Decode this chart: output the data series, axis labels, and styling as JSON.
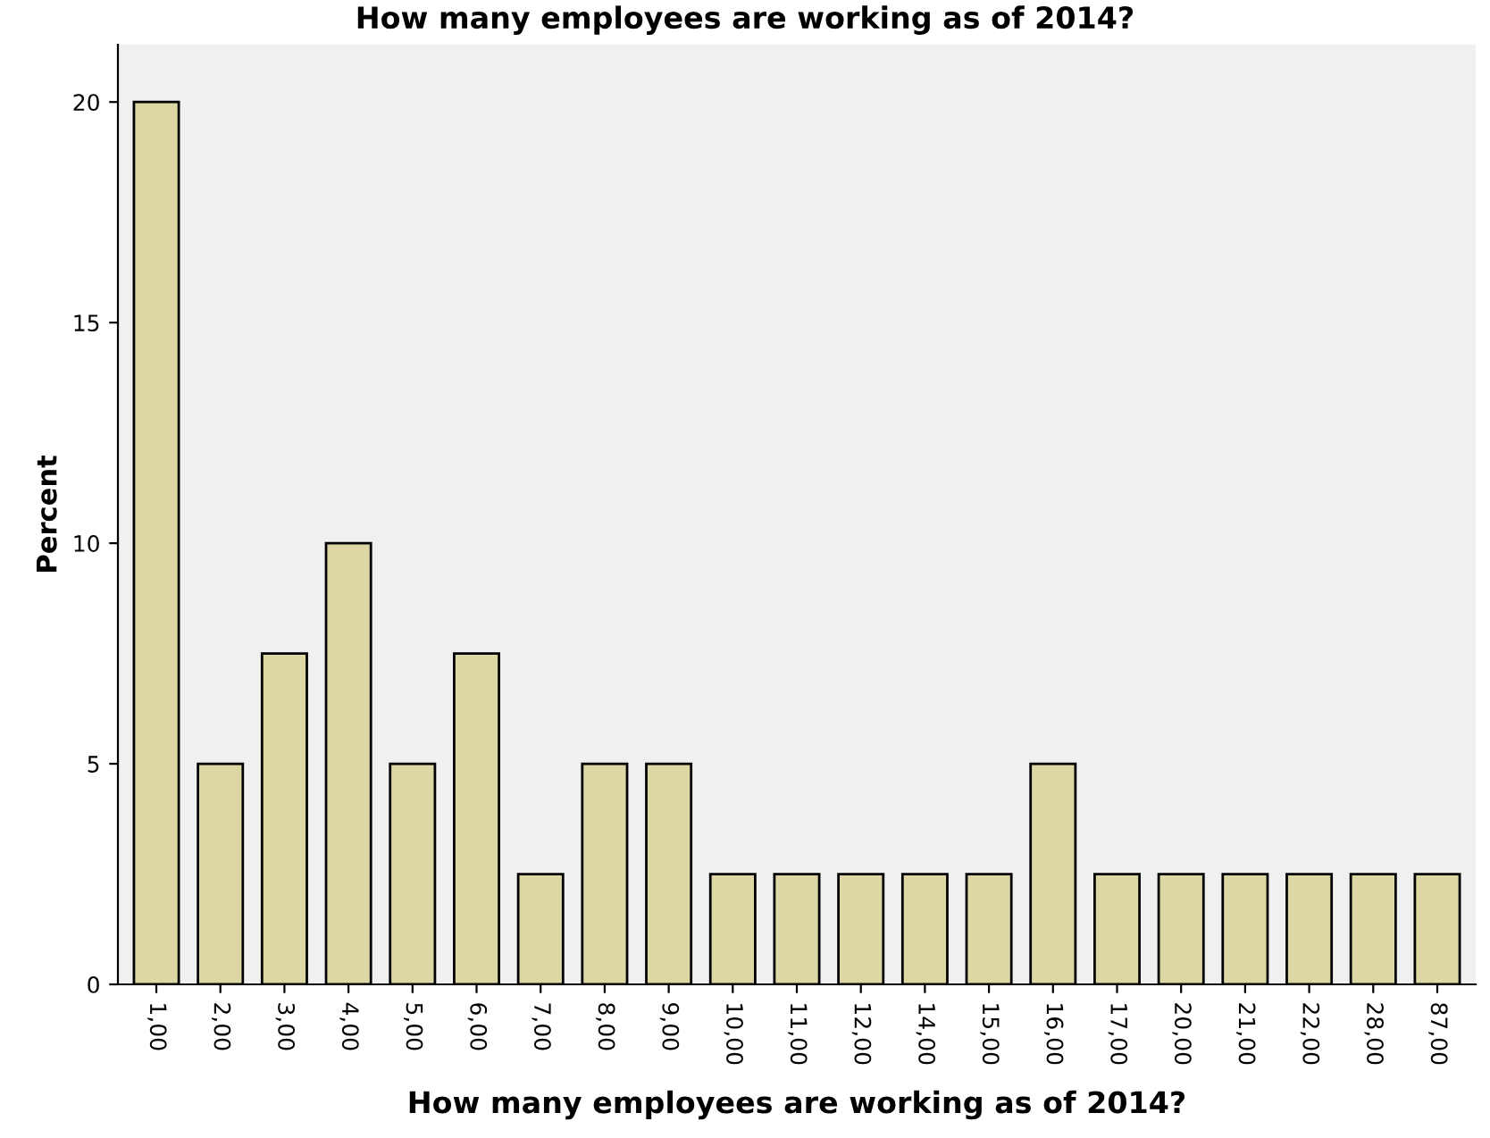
{
  "chart_data": {
    "type": "bar",
    "title": "How many employees are working as of 2014?",
    "xlabel": "How many employees are working as of 2014?",
    "ylabel": "Percent",
    "categories": [
      "1,00",
      "2,00",
      "3,00",
      "4,00",
      "5,00",
      "6,00",
      "7,00",
      "8,00",
      "9,00",
      "10,00",
      "11,00",
      "12,00",
      "14,00",
      "15,00",
      "16,00",
      "17,00",
      "20,00",
      "21,00",
      "22,00",
      "28,00",
      "87,00"
    ],
    "values": [
      20,
      5,
      7.5,
      10,
      5,
      7.5,
      2.5,
      5,
      5,
      2.5,
      2.5,
      2.5,
      2.5,
      2.5,
      5,
      2.5,
      2.5,
      2.5,
      2.5,
      2.5,
      2.5
    ],
    "color": "#ddd6a5",
    "ylim": [
      0,
      21.3
    ],
    "yticks": [
      0,
      5,
      10,
      15,
      20
    ],
    "grid": false
  }
}
